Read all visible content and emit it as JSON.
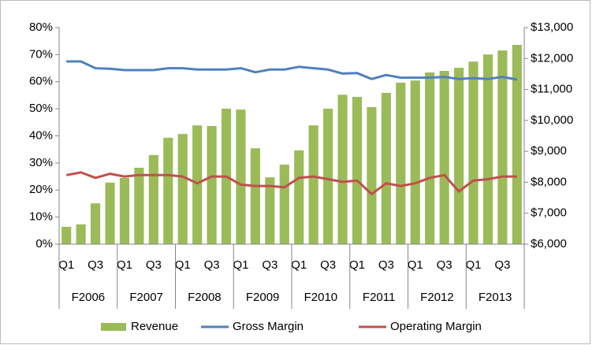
{
  "chart_data": {
    "type": "bar_line",
    "categories": [
      "Q1",
      null,
      "Q3",
      null,
      "Q1",
      null,
      "Q3",
      null,
      "Q1",
      null,
      "Q3",
      null,
      "Q1",
      null,
      "Q3",
      null,
      "Q1",
      null,
      "Q3",
      null,
      "Q1",
      null,
      "Q3",
      null,
      "Q1",
      null,
      "Q3",
      null,
      "Q1",
      null,
      "Q3",
      null
    ],
    "groups": [
      "F2006",
      "F2007",
      "F2008",
      "F2009",
      "F2010",
      "F2011",
      "F2012",
      "F2013"
    ],
    "series": [
      {
        "name": "Revenue",
        "type": "bar",
        "axis": "y2",
        "color": "#9bbb59",
        "values": [
          6560,
          6640,
          7320,
          7990,
          8140,
          8470,
          8880,
          9440,
          9560,
          9840,
          9820,
          10380,
          10350,
          9100,
          8160,
          8570,
          9030,
          9840,
          10380,
          10830,
          10760,
          10430,
          10890,
          11220,
          11290,
          11550,
          11600,
          11700,
          11900,
          12130,
          12260,
          12440
        ]
      },
      {
        "name": "Gross Margin",
        "type": "line",
        "axis": "y",
        "color": "#4f81bd",
        "values": [
          67.5,
          67.5,
          65,
          64.8,
          64.3,
          64.3,
          64.3,
          65,
          65,
          64.5,
          64.5,
          64.5,
          65,
          63.5,
          64.5,
          64.5,
          65.5,
          65,
          64.5,
          63,
          63.2,
          61,
          62.5,
          61.5,
          61.5,
          61.5,
          61.8,
          61,
          61.3,
          61,
          61.8,
          60.8
        ]
      },
      {
        "name": "Operating Margin",
        "type": "line",
        "axis": "y",
        "color": "#c0504d",
        "values": [
          25.5,
          26.5,
          24.5,
          26,
          25,
          25.5,
          25.5,
          25.5,
          25,
          22.5,
          25,
          25,
          22,
          21.5,
          21.5,
          21,
          24.5,
          25,
          24,
          23,
          23.5,
          18.5,
          22.5,
          21.5,
          22.5,
          24.5,
          25.5,
          19.5,
          23.5,
          24,
          25,
          25
        ]
      }
    ],
    "ylim": [
      0,
      80
    ],
    "yticks": [
      {
        "value": 0,
        "label": "0%"
      },
      {
        "value": 10,
        "label": "10%"
      },
      {
        "value": 20,
        "label": "20%"
      },
      {
        "value": 30,
        "label": "30%"
      },
      {
        "value": 40,
        "label": "40%"
      },
      {
        "value": 50,
        "label": "50%"
      },
      {
        "value": 60,
        "label": "60%"
      },
      {
        "value": 70,
        "label": "70%"
      },
      {
        "value": 80,
        "label": "80%"
      }
    ],
    "y2lim": [
      6000,
      13000
    ],
    "y2ticks": [
      {
        "value": 6000,
        "label": "$6,000"
      },
      {
        "value": 7000,
        "label": "$7,000"
      },
      {
        "value": 8000,
        "label": "$8,000"
      },
      {
        "value": 9000,
        "label": "$9,000"
      },
      {
        "value": 10000,
        "label": "$10,000"
      },
      {
        "value": 11000,
        "label": "$11,000"
      },
      {
        "value": 12000,
        "label": "$12,000"
      },
      {
        "value": 13000,
        "label": "$13,000"
      }
    ],
    "grid": false,
    "legend": "bottom"
  }
}
